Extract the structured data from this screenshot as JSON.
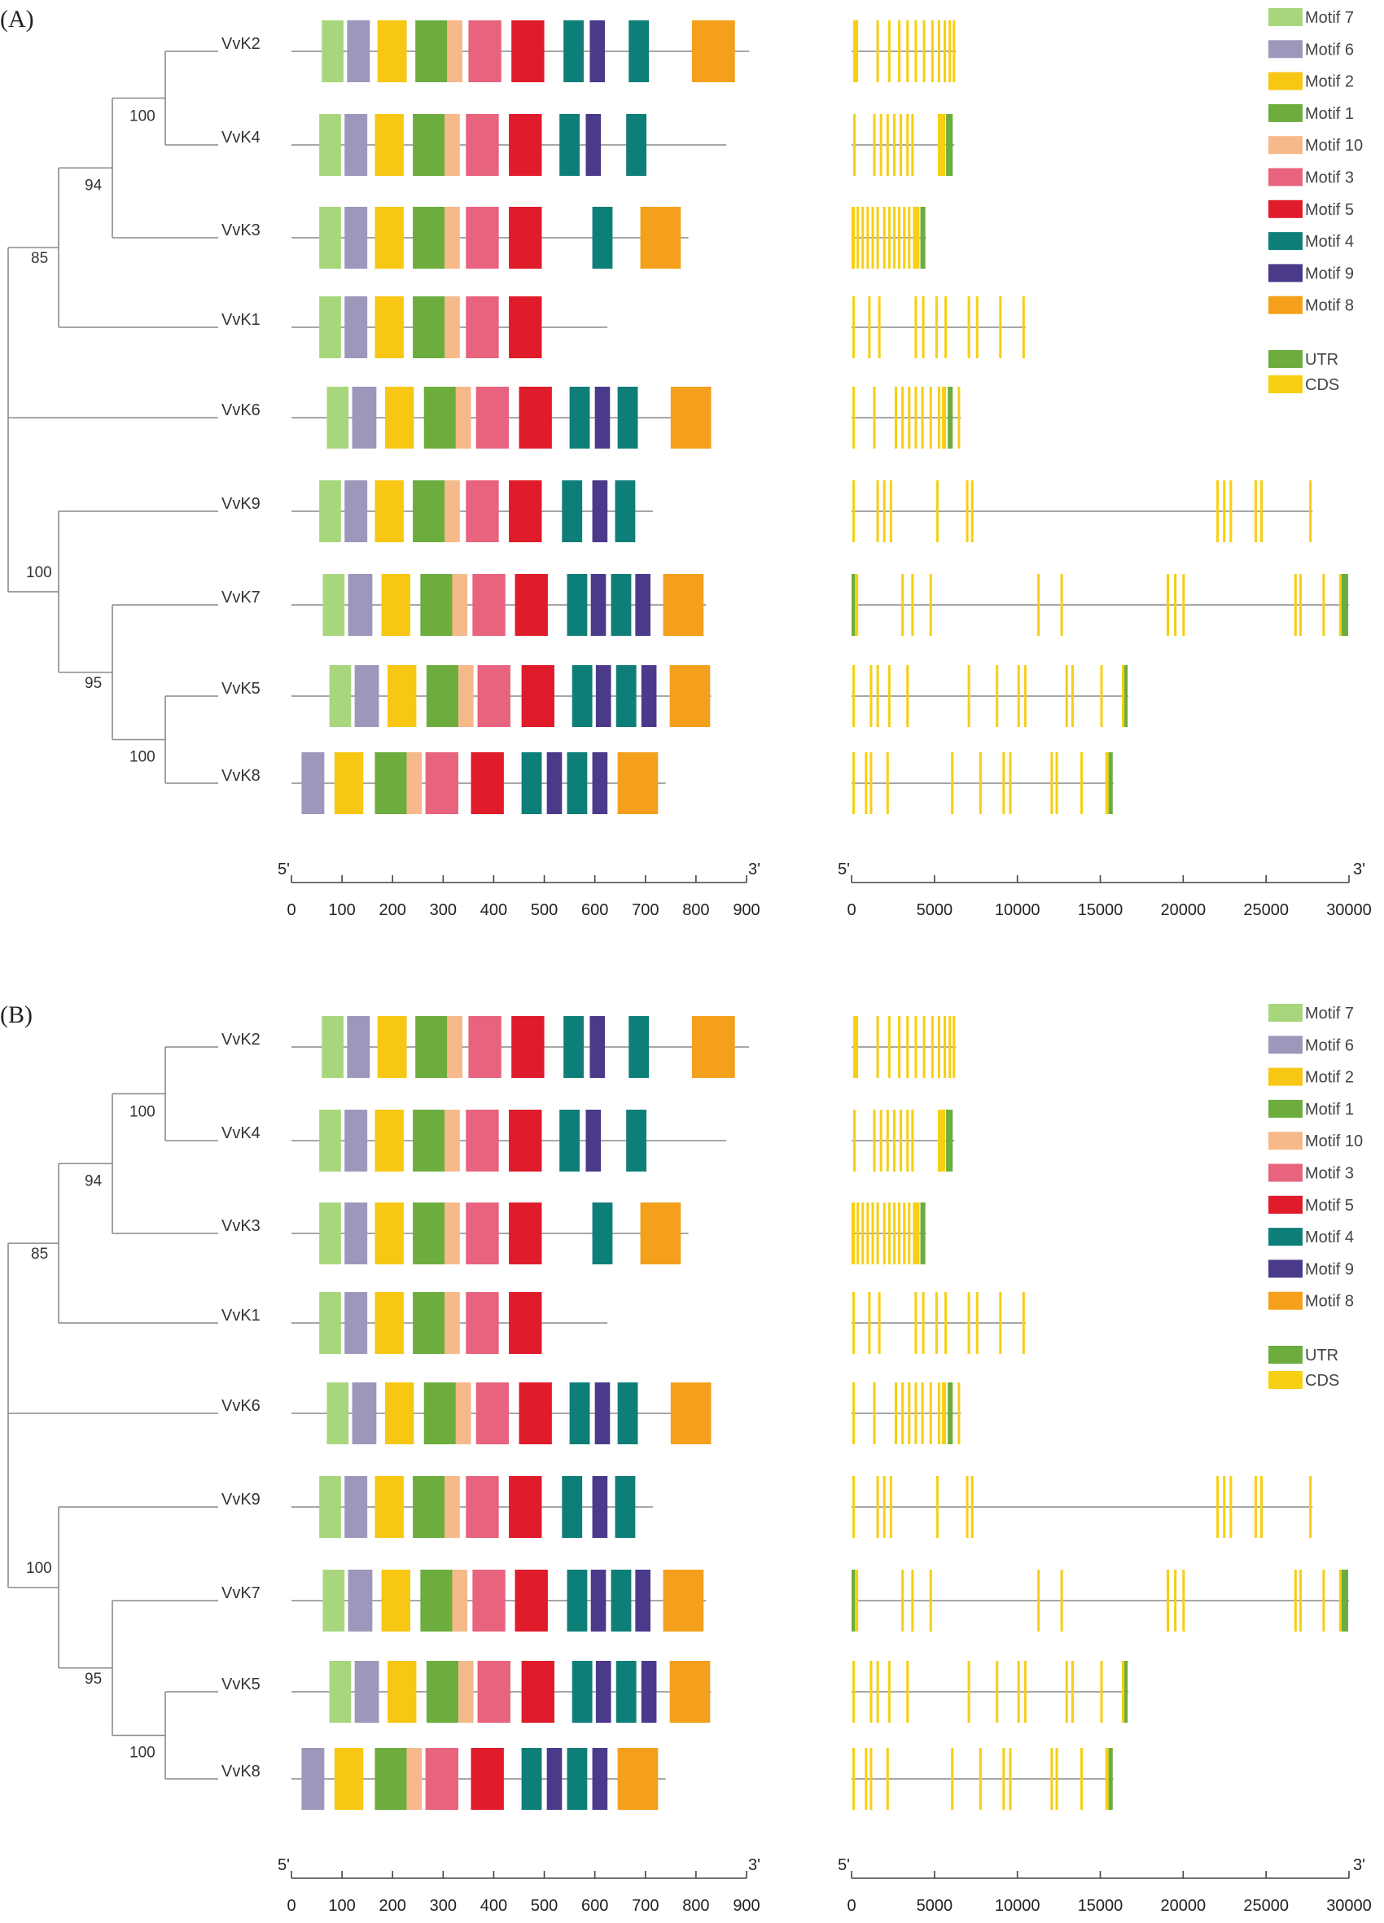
{
  "colors": {
    "Motif 7": "#a8d67d",
    "Motif 6": "#9d97bb",
    "Motif 2": "#f7c713",
    "Motif 1": "#6cad3d",
    "Motif 10": "#f6b98a",
    "Motif 3": "#e8637e",
    "Motif 5": "#e01b2b",
    "Motif 4": "#0e7f78",
    "Motif 9": "#4b3a8a",
    "Motif 8": "#f4a01c",
    "UTR": "#6cad3d",
    "CDS": "#f7cf14"
  },
  "panels": [
    {
      "label": "(A)"
    },
    {
      "label": "(B)"
    }
  ],
  "tree": {
    "genes": [
      "VvK2",
      "VvK4",
      "VvK3",
      "VvK1",
      "VvK6",
      "VvK9",
      "VvK7",
      "VvK5",
      "VvK8"
    ],
    "bootstrap": {
      "K2K4": "100",
      "K2K3": "94",
      "K1": "85",
      "K5K8": "100",
      "K7": "95",
      "K9": "100"
    }
  },
  "motif_legend": [
    "Motif 7",
    "Motif 6",
    "Motif 2",
    "Motif 1",
    "Motif 10",
    "Motif 3",
    "Motif 5",
    "Motif 4",
    "Motif 9",
    "Motif 8"
  ],
  "structure_legend": [
    "UTR",
    "CDS"
  ],
  "motif_axis": {
    "min": 0,
    "max": 900,
    "ticks": [
      0,
      100,
      200,
      300,
      400,
      500,
      600,
      700,
      800,
      900
    ],
    "left_end": "5'",
    "right_end": "3'"
  },
  "gene_axis": {
    "min": 0,
    "max": 30000,
    "ticks": [
      0,
      5000,
      10000,
      15000,
      20000,
      25000,
      30000
    ],
    "left_end": "5'",
    "right_end": "3'"
  },
  "motif_tracks": [
    {
      "gene": "VvK2",
      "length": 905,
      "motifs": [
        [
          "Motif 7",
          60,
          103
        ],
        [
          "Motif 6",
          110,
          155
        ],
        [
          "Motif 2",
          170,
          228
        ],
        [
          "Motif 1",
          245,
          308
        ],
        [
          "Motif 10",
          308,
          338
        ],
        [
          "Motif 3",
          350,
          415
        ],
        [
          "Motif 5",
          435,
          500
        ],
        [
          "Motif 4",
          538,
          578
        ],
        [
          "Motif 9",
          590,
          620
        ],
        [
          "Motif 4",
          667,
          707
        ],
        [
          "Motif 8",
          792,
          877
        ]
      ]
    },
    {
      "gene": "VvK4",
      "length": 860,
      "motifs": [
        [
          "Motif 7",
          55,
          98
        ],
        [
          "Motif 6",
          105,
          150
        ],
        [
          "Motif 2",
          165,
          222
        ],
        [
          "Motif 1",
          240,
          303
        ],
        [
          "Motif 10",
          303,
          333
        ],
        [
          "Motif 3",
          345,
          410
        ],
        [
          "Motif 5",
          430,
          495
        ],
        [
          "Motif 4",
          530,
          570
        ],
        [
          "Motif 9",
          582,
          612
        ],
        [
          "Motif 4",
          662,
          702
        ]
      ]
    },
    {
      "gene": "VvK3",
      "length": 785,
      "motifs": [
        [
          "Motif 7",
          55,
          98
        ],
        [
          "Motif 6",
          105,
          150
        ],
        [
          "Motif 2",
          165,
          222
        ],
        [
          "Motif 1",
          240,
          303
        ],
        [
          "Motif 10",
          303,
          333
        ],
        [
          "Motif 3",
          345,
          410
        ],
        [
          "Motif 5",
          430,
          495
        ],
        [
          "Motif 4",
          595,
          635
        ],
        [
          "Motif 8",
          690,
          770
        ]
      ]
    },
    {
      "gene": "VvK1",
      "length": 625,
      "motifs": [
        [
          "Motif 7",
          55,
          98
        ],
        [
          "Motif 6",
          105,
          150
        ],
        [
          "Motif 2",
          165,
          222
        ],
        [
          "Motif 1",
          240,
          303
        ],
        [
          "Motif 10",
          303,
          333
        ],
        [
          "Motif 3",
          345,
          410
        ],
        [
          "Motif 5",
          430,
          495
        ]
      ]
    },
    {
      "gene": "VvK6",
      "length": 830,
      "motifs": [
        [
          "Motif 7",
          70,
          113
        ],
        [
          "Motif 6",
          120,
          168
        ],
        [
          "Motif 2",
          185,
          242
        ],
        [
          "Motif 1",
          262,
          325
        ],
        [
          "Motif 10",
          325,
          355
        ],
        [
          "Motif 3",
          365,
          430
        ],
        [
          "Motif 5",
          450,
          515
        ],
        [
          "Motif 4",
          550,
          590
        ],
        [
          "Motif 9",
          600,
          630
        ],
        [
          "Motif 4",
          645,
          685
        ],
        [
          "Motif 8",
          750,
          830
        ]
      ]
    },
    {
      "gene": "VvK9",
      "length": 715,
      "motifs": [
        [
          "Motif 7",
          55,
          98
        ],
        [
          "Motif 6",
          105,
          150
        ],
        [
          "Motif 2",
          165,
          222
        ],
        [
          "Motif 1",
          240,
          303
        ],
        [
          "Motif 10",
          303,
          333
        ],
        [
          "Motif 3",
          345,
          410
        ],
        [
          "Motif 5",
          430,
          495
        ],
        [
          "Motif 4",
          535,
          575
        ],
        [
          "Motif 9",
          595,
          625
        ],
        [
          "Motif 4",
          640,
          680
        ]
      ]
    },
    {
      "gene": "VvK7",
      "length": 820,
      "motifs": [
        [
          "Motif 7",
          62,
          105
        ],
        [
          "Motif 6",
          112,
          160
        ],
        [
          "Motif 2",
          178,
          235
        ],
        [
          "Motif 1",
          255,
          318
        ],
        [
          "Motif 10",
          318,
          348
        ],
        [
          "Motif 3",
          358,
          423
        ],
        [
          "Motif 5",
          442,
          507
        ],
        [
          "Motif 4",
          545,
          585
        ],
        [
          "Motif 9",
          592,
          622
        ],
        [
          "Motif 4",
          632,
          672
        ],
        [
          "Motif 9",
          680,
          710
        ],
        [
          "Motif 8",
          735,
          815
        ]
      ]
    },
    {
      "gene": "VvK5",
      "length": 830,
      "motifs": [
        [
          "Motif 7",
          75,
          118
        ],
        [
          "Motif 6",
          125,
          173
        ],
        [
          "Motif 2",
          190,
          247
        ],
        [
          "Motif 1",
          267,
          330
        ],
        [
          "Motif 10",
          330,
          360
        ],
        [
          "Motif 3",
          368,
          433
        ],
        [
          "Motif 5",
          455,
          520
        ],
        [
          "Motif 4",
          555,
          595
        ],
        [
          "Motif 9",
          602,
          632
        ],
        [
          "Motif 4",
          642,
          682
        ],
        [
          "Motif 9",
          692,
          722
        ],
        [
          "Motif 8",
          748,
          828
        ]
      ]
    },
    {
      "gene": "VvK8",
      "length": 740,
      "motifs": [
        [
          "Motif 6",
          20,
          65
        ],
        [
          "Motif 2",
          85,
          142
        ],
        [
          "Motif 1",
          165,
          228
        ],
        [
          "Motif 10",
          228,
          258
        ],
        [
          "Motif 3",
          265,
          330
        ],
        [
          "Motif 5",
          355,
          420
        ],
        [
          "Motif 4",
          455,
          495
        ],
        [
          "Motif 9",
          505,
          535
        ],
        [
          "Motif 4",
          545,
          585
        ],
        [
          "Motif 9",
          595,
          625
        ],
        [
          "Motif 8",
          645,
          725
        ]
      ]
    }
  ],
  "gene_structures": [
    {
      "gene": "VvK2",
      "length": 6300,
      "utr": [],
      "cds": [
        [
          100,
          400
        ],
        [
          1500,
          1650
        ],
        [
          2200,
          2350
        ],
        [
          2800,
          2950
        ],
        [
          3300,
          3450
        ],
        [
          3800,
          3950
        ],
        [
          4300,
          4450
        ],
        [
          4800,
          4950
        ],
        [
          5200,
          5350
        ],
        [
          5550,
          5700
        ],
        [
          5850,
          6000
        ],
        [
          6100,
          6250
        ]
      ]
    },
    {
      "gene": "VvK4",
      "length": 6200,
      "utr": [
        [
          5700,
          6100
        ]
      ],
      "cds": [
        [
          100,
          250
        ],
        [
          1300,
          1450
        ],
        [
          1700,
          1850
        ],
        [
          2100,
          2250
        ],
        [
          2500,
          2650
        ],
        [
          2900,
          3050
        ],
        [
          3300,
          3450
        ],
        [
          3600,
          3750
        ],
        [
          5200,
          5650
        ]
      ]
    },
    {
      "gene": "VvK3",
      "length": 4500,
      "utr": [
        [
          4150,
          4450
        ]
      ],
      "cds": [
        [
          0,
          200
        ],
        [
          300,
          450
        ],
        [
          600,
          750
        ],
        [
          900,
          1050
        ],
        [
          1200,
          1350
        ],
        [
          1500,
          1650
        ],
        [
          1900,
          2050
        ],
        [
          2200,
          2350
        ],
        [
          2500,
          2650
        ],
        [
          2800,
          2950
        ],
        [
          3100,
          3250
        ],
        [
          3400,
          3550
        ],
        [
          3700,
          4100
        ]
      ]
    },
    {
      "gene": "VvK1",
      "length": 10500,
      "utr": [],
      "cds": [
        [
          50,
          200
        ],
        [
          1000,
          1150
        ],
        [
          1600,
          1750
        ],
        [
          3800,
          3950
        ],
        [
          4250,
          4400
        ],
        [
          5050,
          5200
        ],
        [
          5600,
          5750
        ],
        [
          7000,
          7150
        ],
        [
          7500,
          7650
        ],
        [
          8900,
          9050
        ],
        [
          10300,
          10450
        ]
      ]
    },
    {
      "gene": "VvK6",
      "length": 6600,
      "utr": [
        [
          5800,
          6100
        ]
      ],
      "cds": [
        [
          50,
          200
        ],
        [
          1300,
          1450
        ],
        [
          2600,
          2750
        ],
        [
          3000,
          3150
        ],
        [
          3400,
          3550
        ],
        [
          3800,
          3950
        ],
        [
          4200,
          4350
        ],
        [
          4700,
          4850
        ],
        [
          5200,
          5350
        ],
        [
          5450,
          5700
        ],
        [
          6400,
          6550
        ]
      ]
    },
    {
      "gene": "VvK9",
      "length": 27800,
      "utr": [],
      "cds": [
        [
          50,
          200
        ],
        [
          1500,
          1650
        ],
        [
          1900,
          2050
        ],
        [
          2300,
          2450
        ],
        [
          5100,
          5250
        ],
        [
          6900,
          7050
        ],
        [
          7200,
          7350
        ],
        [
          22000,
          22150
        ],
        [
          22400,
          22550
        ],
        [
          22800,
          22950
        ],
        [
          24300,
          24450
        ],
        [
          24650,
          24800
        ],
        [
          27600,
          27750
        ]
      ]
    },
    {
      "gene": "VvK7",
      "length": 30000,
      "utr": [
        [
          0,
          200
        ],
        [
          29550,
          29950
        ]
      ],
      "cds": [
        [
          200,
          400
        ],
        [
          3000,
          3150
        ],
        [
          3600,
          3750
        ],
        [
          4700,
          4850
        ],
        [
          11200,
          11350
        ],
        [
          12600,
          12750
        ],
        [
          19000,
          19150
        ],
        [
          19450,
          19600
        ],
        [
          19950,
          20100
        ],
        [
          26700,
          26850
        ],
        [
          27000,
          27150
        ],
        [
          28400,
          28550
        ],
        [
          29400,
          29550
        ]
      ]
    },
    {
      "gene": "VvK5",
      "length": 16700,
      "utr": [
        [
          16450,
          16650
        ]
      ],
      "cds": [
        [
          50,
          200
        ],
        [
          1100,
          1250
        ],
        [
          1500,
          1650
        ],
        [
          2200,
          2350
        ],
        [
          3300,
          3450
        ],
        [
          7000,
          7150
        ],
        [
          8700,
          8850
        ],
        [
          10000,
          10150
        ],
        [
          10400,
          10550
        ],
        [
          12900,
          13050
        ],
        [
          13250,
          13400
        ],
        [
          15000,
          15150
        ],
        [
          16300,
          16450
        ]
      ]
    },
    {
      "gene": "VvK8",
      "length": 15800,
      "utr": [
        [
          15500,
          15750
        ]
      ],
      "cds": [
        [
          50,
          200
        ],
        [
          800,
          950
        ],
        [
          1100,
          1250
        ],
        [
          2100,
          2250
        ],
        [
          6000,
          6150
        ],
        [
          7700,
          7850
        ],
        [
          9100,
          9250
        ],
        [
          9500,
          9650
        ],
        [
          12000,
          12150
        ],
        [
          12300,
          12450
        ],
        [
          13800,
          13950
        ],
        [
          15300,
          15500
        ]
      ]
    }
  ]
}
